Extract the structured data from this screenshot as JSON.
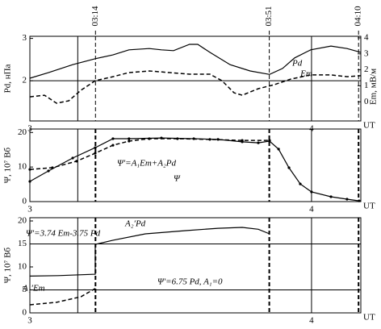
{
  "events": [
    {
      "x": 3.233,
      "label": "03:14"
    },
    {
      "x": 3.85,
      "label": "03:51"
    },
    {
      "x": 4.167,
      "label": "04:10"
    }
  ],
  "vlines": [
    3.17
  ],
  "chart_data": [
    {
      "type": "line",
      "xlim": [
        3,
        4.175
      ],
      "xticks": [
        3,
        4
      ],
      "x_label": "UT",
      "ylim": [
        1.05,
        3.05
      ],
      "yticks": [
        2,
        3
      ],
      "y_label": "Pd, нПа",
      "y2lim": [
        -1.2,
        4.1
      ],
      "y2ticks": [
        0,
        1,
        2,
        3,
        4
      ],
      "y2_label": "Em, мВ/м",
      "hlines": [
        2
      ],
      "series": [
        {
          "name": "Pd",
          "color": "#000000",
          "dash": false,
          "x": [
            3.0,
            3.066,
            3.152,
            3.232,
            3.295,
            3.352,
            3.424,
            3.467,
            3.51,
            3.567,
            3.596,
            3.639,
            3.711,
            3.782,
            3.851,
            3.897,
            3.94,
            3.997,
            4.069,
            4.126,
            4.175
          ],
          "values": [
            2.06,
            2.19,
            2.38,
            2.52,
            2.61,
            2.73,
            2.76,
            2.73,
            2.71,
            2.86,
            2.86,
            2.67,
            2.38,
            2.23,
            2.15,
            2.29,
            2.54,
            2.73,
            2.82,
            2.76,
            2.67
          ]
        },
        {
          "name": "Em",
          "color": "#000000",
          "dash": true,
          "axis": "y2",
          "x": [
            3.0,
            3.052,
            3.095,
            3.138,
            3.181,
            3.232,
            3.295,
            3.352,
            3.424,
            3.496,
            3.567,
            3.639,
            3.682,
            3.725,
            3.754,
            3.811,
            3.868,
            3.926,
            3.997,
            4.069,
            4.126,
            4.175
          ],
          "values": [
            0.31,
            0.41,
            -0.09,
            0.06,
            0.72,
            1.32,
            1.57,
            1.83,
            1.93,
            1.83,
            1.73,
            1.73,
            1.32,
            0.56,
            0.41,
            0.82,
            1.07,
            1.42,
            1.68,
            1.68,
            1.57,
            1.63
          ]
        }
      ]
    },
    {
      "type": "line",
      "xlim": [
        3,
        4.175
      ],
      "xticks": [
        3,
        4
      ],
      "x_label": "UT",
      "ylim": [
        0,
        21
      ],
      "yticks": [
        0,
        10,
        20
      ],
      "y_label": "Ψ, 10⁷ Вб",
      "markers": true,
      "annotations": [
        "Ψ′=A₁Em+A₂Pd",
        "Ψ"
      ],
      "series": [
        {
          "color": "#000000",
          "dash": false,
          "x": [
            3.0,
            3.066,
            3.152,
            3.232,
            3.295,
            3.352,
            3.467,
            3.582,
            3.668,
            3.754,
            3.811,
            3.851,
            3.883,
            3.92,
            3.96,
            4.0,
            4.069,
            4.126,
            4.169
          ],
          "values": [
            5.83,
            8.87,
            12.6,
            15.6,
            18.2,
            18.2,
            18.4,
            18.2,
            18.0,
            17.3,
            17.0,
            17.5,
            15.2,
            9.8,
            5.1,
            2.8,
            1.4,
            0.7,
            0.2
          ]
        },
        {
          "color": "#000000",
          "dash": true,
          "x": [
            3.0,
            3.08,
            3.166,
            3.232,
            3.295,
            3.352,
            3.424,
            3.524,
            3.639,
            3.754,
            3.851
          ],
          "values": [
            9.3,
            9.8,
            11.7,
            14.0,
            16.3,
            17.5,
            18.2,
            18.2,
            18.0,
            17.7,
            17.7
          ]
        }
      ]
    },
    {
      "type": "line",
      "xlim": [
        3,
        4.175
      ],
      "xticks": [
        3,
        4
      ],
      "x_label": "UT",
      "ylim": [
        0,
        20.7
      ],
      "yticks": [
        0,
        5,
        10,
        15,
        20
      ],
      "y_label": "Ψ, 10⁷ Вб",
      "hlines": [
        5,
        15
      ],
      "annotations": [
        "Ψ′=3.74 Em-3.75 Pd",
        "A₂′Pd",
        "A₁′Em",
        "Ψ′=6.75 Pd, A₁=0"
      ],
      "series": [
        {
          "color": "#000000",
          "dash": false,
          "x": [
            3.0,
            3.1,
            3.232,
            3.232,
            3.295,
            3.41,
            3.553,
            3.668,
            3.754,
            3.811,
            3.851
          ],
          "values": [
            8.0,
            8.1,
            8.4,
            14.9,
            15.8,
            17.2,
            17.9,
            18.4,
            18.6,
            18.2,
            17.2
          ]
        },
        {
          "color": "#000000",
          "dash": true,
          "x": [
            3.0,
            3.095,
            3.181,
            3.232
          ],
          "values": [
            1.75,
            2.3,
            3.5,
            5.3
          ]
        }
      ]
    }
  ]
}
